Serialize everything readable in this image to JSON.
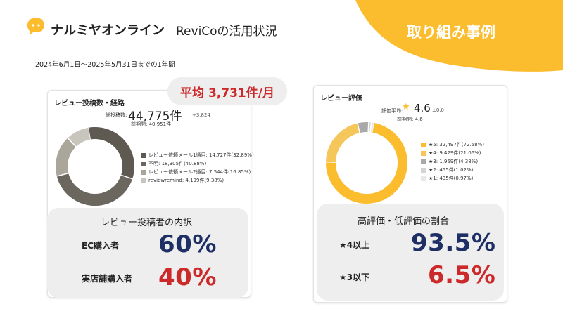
{
  "header": {
    "brand": "ナルミヤオンライン",
    "title": "ReviCoの活用状況",
    "section_tag": "取り組み事例",
    "period": "2024年6月1日～2025年5月31日までの1年間"
  },
  "colors": {
    "accent_yellow": "#fbbc2e",
    "dark_grey": "#5e5a52",
    "red": "#cc2a2a",
    "navy": "#1e2f66"
  },
  "left_card": {
    "title": "レビュー投稿数・経路",
    "average_badge": "平均 3,731件/月",
    "total_label": "総投稿数:",
    "total_value": "44,775件",
    "total_delta": "+3,824",
    "previous": "前期間: 40,951件",
    "donut": [
      {
        "label": "レビュー依頼メール1通目: 14,727件(32.89%)",
        "value": 32.89,
        "color": "#5e5a52"
      },
      {
        "label": "不明: 18,305件(40.88%)",
        "value": 40.88,
        "color": "#6b675e"
      },
      {
        "label": "レビュー依頼メール2通目: 7,544件(16.85%)",
        "value": 16.85,
        "color": "#aaa69a"
      },
      {
        "label": "reviewremind: 4,199件(9.38%)",
        "value": 9.38,
        "color": "#c8c5bd"
      }
    ],
    "breakdown": {
      "title": "レビュー投稿者の内訳",
      "rows": [
        {
          "label": "EC購入者",
          "value": "60%"
        },
        {
          "label": "実店舗購入者",
          "value": "40%"
        }
      ]
    }
  },
  "right_card": {
    "title": "レビュー評価",
    "avg_label": "評価平均:",
    "avg_star": "★",
    "avg_value": "4.6",
    "avg_delta": "±0.0",
    "previous": "前期間: 4.6",
    "donut": [
      {
        "label": "★5: 32,497件(72.58%)",
        "value": 72.58,
        "color": "#fbbc2e"
      },
      {
        "label": "★4: 9,429件(21.06%)",
        "value": 21.06,
        "color": "#f5c65a"
      },
      {
        "label": "★3: 1,959件(4.38%)",
        "value": 4.38,
        "color": "#a9a9a9"
      },
      {
        "label": "★2: 455件(1.02%)",
        "value": 1.02,
        "color": "#d4d4d4"
      },
      {
        "label": "★1: 435件(0.97%)",
        "value": 0.97,
        "color": "#e8e8e8"
      }
    ],
    "ratio": {
      "title": "高評価・低評価の割合",
      "rows": [
        {
          "label": "★4以上",
          "value": "93.5%"
        },
        {
          "label": "★3以下",
          "value": "6.5%"
        }
      ]
    }
  }
}
